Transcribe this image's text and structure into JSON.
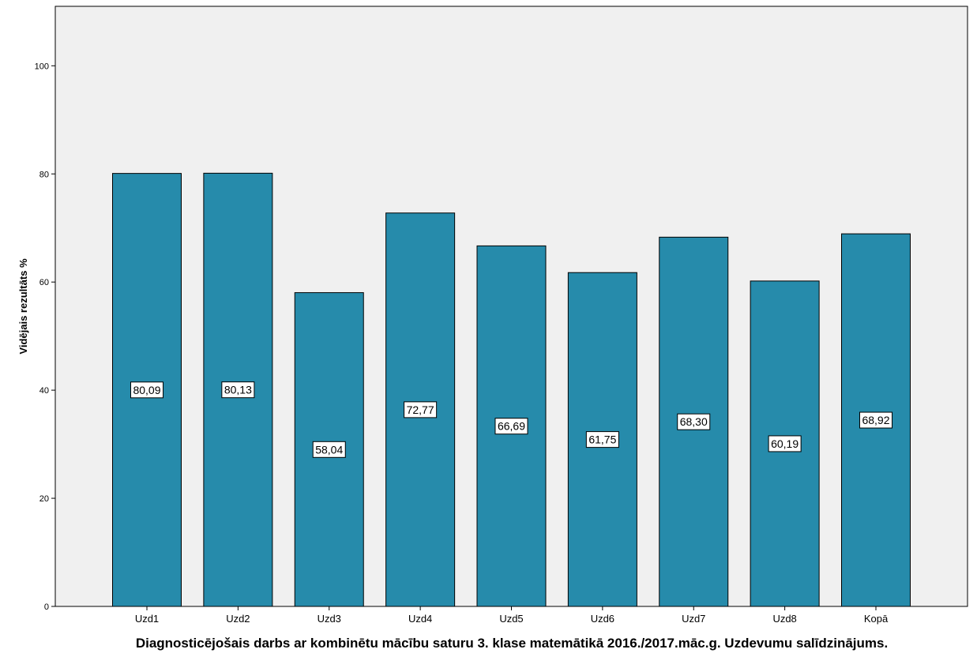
{
  "chart_data": {
    "type": "bar",
    "title": "Diagnosticējošais darbs ar kombinētu mācību saturu 3. klase matemātikā 2016./2017.māc.g. Uzdevumu salīdzinājums.",
    "xlabel": "Diagnosticējošais darbs ar kombinētu mācību saturu 3. klase matemātikā 2016./2017.māc.g. Uzdevumu salīdzinājums.",
    "ylabel": "Vidējais rezultāts %",
    "categories": [
      "Uzd1",
      "Uzd2",
      "Uzd3",
      "Uzd4",
      "Uzd5",
      "Uzd6",
      "Uzd7",
      "Uzd8",
      "Kopā"
    ],
    "values": [
      80.09,
      80.13,
      58.04,
      72.77,
      66.69,
      61.75,
      68.3,
      60.19,
      68.92
    ],
    "data_labels": [
      "80,09",
      "80,13",
      "58,04",
      "72,77",
      "66,69",
      "61,75",
      "68,30",
      "60,19",
      "68,92"
    ],
    "yticks": [
      0,
      20,
      40,
      60,
      80,
      100
    ],
    "ytick_labels": [
      "0",
      "20",
      "40",
      "60",
      "80",
      "100"
    ],
    "ylim": [
      0,
      111
    ],
    "grid": false,
    "legend": "none",
    "colors": {
      "bar": "#268bab",
      "plot_background": "#f0f0f0",
      "axis": "#000000"
    }
  }
}
